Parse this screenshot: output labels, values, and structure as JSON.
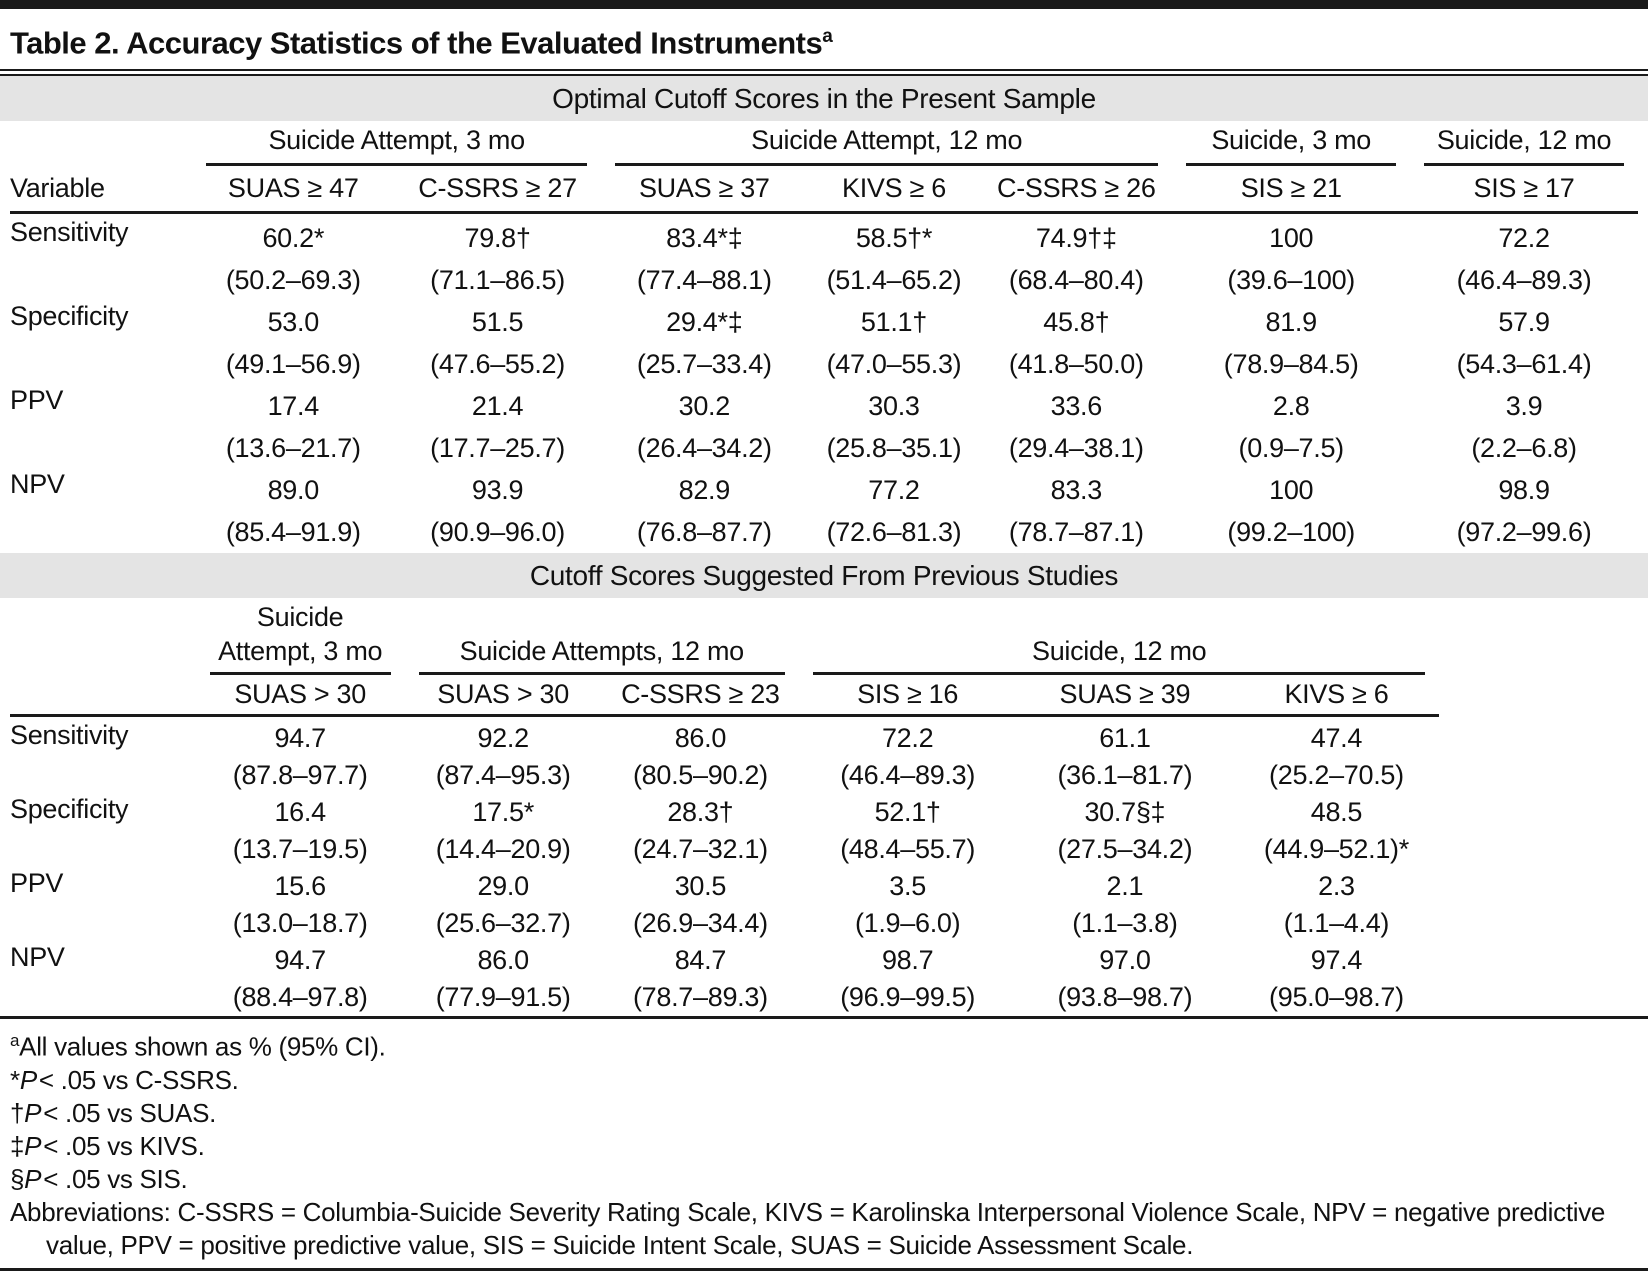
{
  "title": {
    "text": "Table 2. Accuracy Statistics of the Evaluated Instruments",
    "superscript": "a"
  },
  "colors": {
    "band_bg": "#e4e4e4",
    "rule": "#1a1a1a",
    "text": "#111111"
  },
  "section1": {
    "band_label": "Optimal Cutoff Scores in the Present Sample",
    "corner_label": "Variable",
    "col_widths": [
      "11.2%",
      "12.4%",
      "12.7%",
      "12.7%",
      "10.6%",
      "11.8%",
      "14.6%",
      "14%"
    ],
    "groups": [
      {
        "label": "Suicide Attempt, 3 mo",
        "span": 2
      },
      {
        "label": "Suicide Attempt, 12 mo",
        "span": 3
      },
      {
        "label": "Suicide, 3 mo",
        "span": 1
      },
      {
        "label": "Suicide, 12 mo",
        "span": 1
      }
    ],
    "columns": [
      "SUAS ≥ 47",
      "C-SSRS ≥ 27",
      "SUAS ≥ 37",
      "KIVS ≥ 6",
      "C-SSRS ≥ 26",
      "SIS ≥ 21",
      "SIS ≥ 17"
    ],
    "rows": [
      {
        "label": "Sensitivity",
        "cells": [
          [
            "60.2*",
            "(50.2–69.3)"
          ],
          [
            "79.8†",
            "(71.1–86.5)"
          ],
          [
            "83.4*‡",
            "(77.4–88.1)"
          ],
          [
            "58.5†*",
            "(51.4–65.2)"
          ],
          [
            "74.9†‡",
            "(68.4–80.4)"
          ],
          [
            "100",
            "(39.6–100)"
          ],
          [
            "72.2",
            "(46.4–89.3)"
          ]
        ]
      },
      {
        "label": "Specificity",
        "cells": [
          [
            "53.0",
            "(49.1–56.9)"
          ],
          [
            "51.5",
            "(47.6–55.2)"
          ],
          [
            "29.4*‡",
            "(25.7–33.4)"
          ],
          [
            "51.1†",
            "(47.0–55.3)"
          ],
          [
            "45.8†",
            "(41.8–50.0)"
          ],
          [
            "81.9",
            "(78.9–84.5)"
          ],
          [
            "57.9",
            "(54.3–61.4)"
          ]
        ]
      },
      {
        "label": "PPV",
        "cells": [
          [
            "17.4",
            "(13.6–21.7)"
          ],
          [
            "21.4",
            "(17.7–25.7)"
          ],
          [
            "30.2",
            "(26.4–34.2)"
          ],
          [
            "30.3",
            "(25.8–35.1)"
          ],
          [
            "33.6",
            "(29.4–38.1)"
          ],
          [
            "2.8",
            "(0.9–7.5)"
          ],
          [
            "3.9",
            "(2.2–6.8)"
          ]
        ]
      },
      {
        "label": "NPV",
        "cells": [
          [
            "89.0",
            "(85.4–91.9)"
          ],
          [
            "93.9",
            "(90.9–96.0)"
          ],
          [
            "82.9",
            "(76.8–87.7)"
          ],
          [
            "77.2",
            "(72.6–81.3)"
          ],
          [
            "83.3",
            "(78.7–87.1)"
          ],
          [
            "100",
            "(99.2–100)"
          ],
          [
            "98.9",
            "(97.2–99.6)"
          ]
        ]
      }
    ]
  },
  "section2": {
    "band_label": "Cutoff Scores Suggested From Previous Studies",
    "corner_label": "",
    "col_widths": [
      "13%",
      "14.6%",
      "13.8%",
      "13.8%",
      "15.2%",
      "15.2%",
      "14.4%"
    ],
    "groups": [
      {
        "label": "Suicide\nAttempt, 3 mo",
        "span": 1
      },
      {
        "label": "Suicide Attempts, 12 mo",
        "span": 2
      },
      {
        "label": "Suicide, 12 mo",
        "span": 3
      }
    ],
    "columns": [
      "SUAS > 30",
      "SUAS > 30",
      "C-SSRS ≥ 23",
      "SIS ≥ 16",
      "SUAS ≥ 39",
      "KIVS ≥ 6"
    ],
    "rows": [
      {
        "label": "Sensitivity",
        "cells": [
          [
            "94.7",
            "(87.8–97.7)"
          ],
          [
            "92.2",
            "(87.4–95.3)"
          ],
          [
            "86.0",
            "(80.5–90.2)"
          ],
          [
            "72.2",
            "(46.4–89.3)"
          ],
          [
            "61.1",
            "(36.1–81.7)"
          ],
          [
            "47.4",
            "(25.2–70.5)"
          ]
        ]
      },
      {
        "label": "Specificity",
        "cells": [
          [
            "16.4",
            "(13.7–19.5)"
          ],
          [
            "17.5*",
            "(14.4–20.9)"
          ],
          [
            "28.3†",
            "(24.7–32.1)"
          ],
          [
            "52.1†",
            "(48.4–55.7)"
          ],
          [
            "30.7§‡",
            "(27.5–34.2)"
          ],
          [
            "48.5",
            "(44.9–52.1)*"
          ]
        ]
      },
      {
        "label": "PPV",
        "cells": [
          [
            "15.6",
            "(13.0–18.7)"
          ],
          [
            "29.0",
            "(25.6–32.7)"
          ],
          [
            "30.5",
            "(26.9–34.4)"
          ],
          [
            "3.5",
            "(1.9–6.0)"
          ],
          [
            "2.1",
            "(1.1–3.8)"
          ],
          [
            "2.3",
            "(1.1–4.4)"
          ]
        ]
      },
      {
        "label": "NPV",
        "cells": [
          [
            "94.7",
            "(88.4–97.8)"
          ],
          [
            "86.0",
            "(77.9–91.5)"
          ],
          [
            "84.7",
            "(78.7–89.3)"
          ],
          [
            "98.7",
            "(96.9–99.5)"
          ],
          [
            "97.0",
            "(93.8–98.7)"
          ],
          [
            "97.4",
            "(95.0–98.7)"
          ]
        ]
      }
    ]
  },
  "footnotes": [
    {
      "marker": "a",
      "sup": true,
      "italic": "",
      "text": "All values shown as % (95% CI)."
    },
    {
      "marker": "*",
      "sup": false,
      "italic": "P",
      "text": "< .05 vs C-SSRS."
    },
    {
      "marker": "†",
      "sup": false,
      "italic": "P",
      "text": "< .05 vs SUAS."
    },
    {
      "marker": "‡",
      "sup": false,
      "italic": "P",
      "text": "< .05 vs KIVS."
    },
    {
      "marker": "§",
      "sup": false,
      "italic": "P",
      "text": "< .05 vs SIS."
    },
    {
      "marker": "",
      "sup": false,
      "italic": "",
      "hanging": true,
      "text": "Abbreviations: C-SSRS = Columbia-Suicide Severity Rating Scale, KIVS = Karolinska Interpersonal Violence Scale, NPV = negative predictive value, PPV = positive predictive value, SIS = Suicide Intent Scale, SUAS = Suicide Assessment Scale."
    }
  ]
}
